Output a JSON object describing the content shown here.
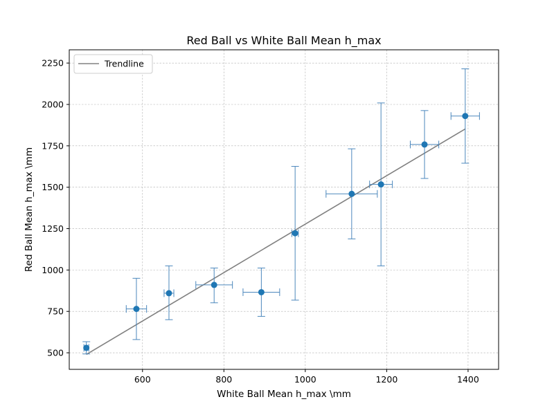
{
  "chart_data": {
    "type": "scatter",
    "title": "Red Ball vs White Ball Mean h_max",
    "xlabel": "White Ball Mean h_max \\mm",
    "ylabel": "Red Ball Mean h_max \\mm",
    "xlim": [
      420,
      1475
    ],
    "ylim": [
      400,
      2330
    ],
    "xticks": [
      600,
      800,
      1000,
      1200,
      1400
    ],
    "yticks": [
      500,
      750,
      1000,
      1250,
      1500,
      1750,
      2000,
      2250
    ],
    "grid": true,
    "legend_placement": "top-left",
    "points": [
      {
        "x": 462,
        "y": 530,
        "xerr": 6,
        "yerr_low": 37,
        "yerr_high": 37
      },
      {
        "x": 585,
        "y": 765,
        "xerr": 25,
        "yerr_low": 185,
        "yerr_high": 185
      },
      {
        "x": 665,
        "y": 860,
        "xerr": 12,
        "yerr_low": 160,
        "yerr_high": 165
      },
      {
        "x": 776,
        "y": 910,
        "xerr": 45,
        "yerr_low": 108,
        "yerr_high": 102
      },
      {
        "x": 892,
        "y": 866,
        "xerr": 45,
        "yerr_low": 146,
        "yerr_high": 146
      },
      {
        "x": 975,
        "y": 1222,
        "xerr": 8,
        "yerr_low": 404,
        "yerr_high": 404
      },
      {
        "x": 1114,
        "y": 1460,
        "xerr": 63,
        "yerr_low": 272,
        "yerr_high": 272
      },
      {
        "x": 1186,
        "y": 1517,
        "xerr": 28,
        "yerr_low": 492,
        "yerr_high": 492
      },
      {
        "x": 1293,
        "y": 1758,
        "xerr": 35,
        "yerr_low": 205,
        "yerr_high": 205
      },
      {
        "x": 1393,
        "y": 1930,
        "xerr": 35,
        "yerr_low": 285,
        "yerr_high": 285
      }
    ],
    "trendline": {
      "name": "Trendline",
      "x": [
        462,
        1393
      ],
      "y": [
        490,
        1852
      ],
      "color": "#808080"
    },
    "marker_color": "#1f77b4",
    "errorbar_color": "#4b87bc"
  }
}
